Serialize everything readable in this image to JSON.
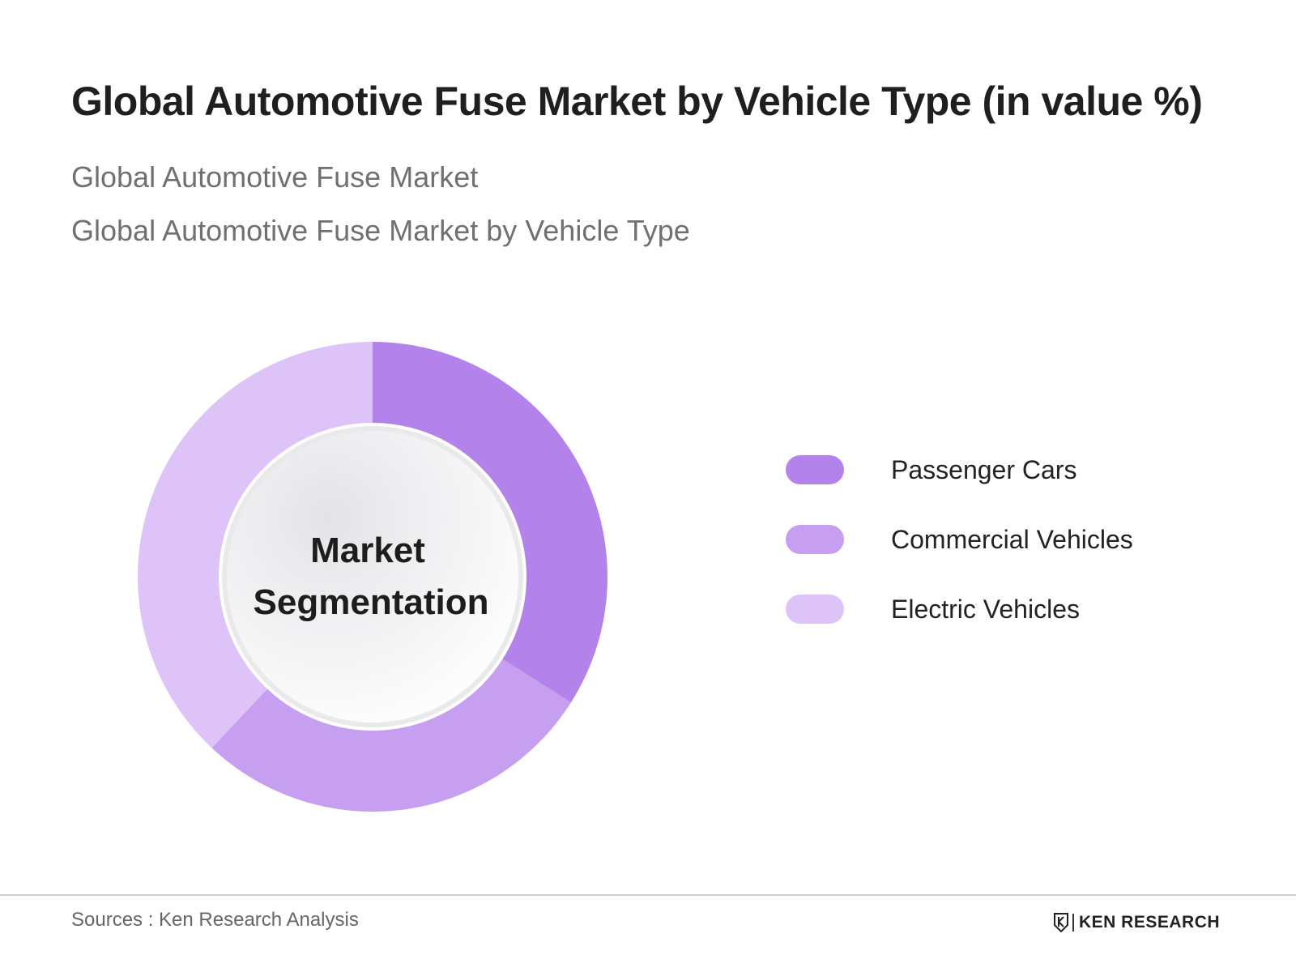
{
  "title": "Global Automotive Fuse Market by Vehicle Type (in value %)",
  "subtitles": [
    "Global Automotive Fuse Market",
    "Global Automotive Fuse Market by Vehicle Type"
  ],
  "center_label": [
    "Market",
    "Segmentation"
  ],
  "source": "Sources : Ken Research Analysis",
  "brand": "KEN RESEARCH",
  "chart_data": {
    "type": "pie",
    "title": "Global Automotive Fuse Market by Vehicle Type (in value %)",
    "categories": [
      "Passenger Cars",
      "Commercial Vehicles",
      "Electric Vehicles"
    ],
    "values": [
      34,
      28,
      38
    ],
    "colors": [
      "#b383eb",
      "#c79ff0",
      "#ddc3f7"
    ],
    "legend": "right"
  }
}
